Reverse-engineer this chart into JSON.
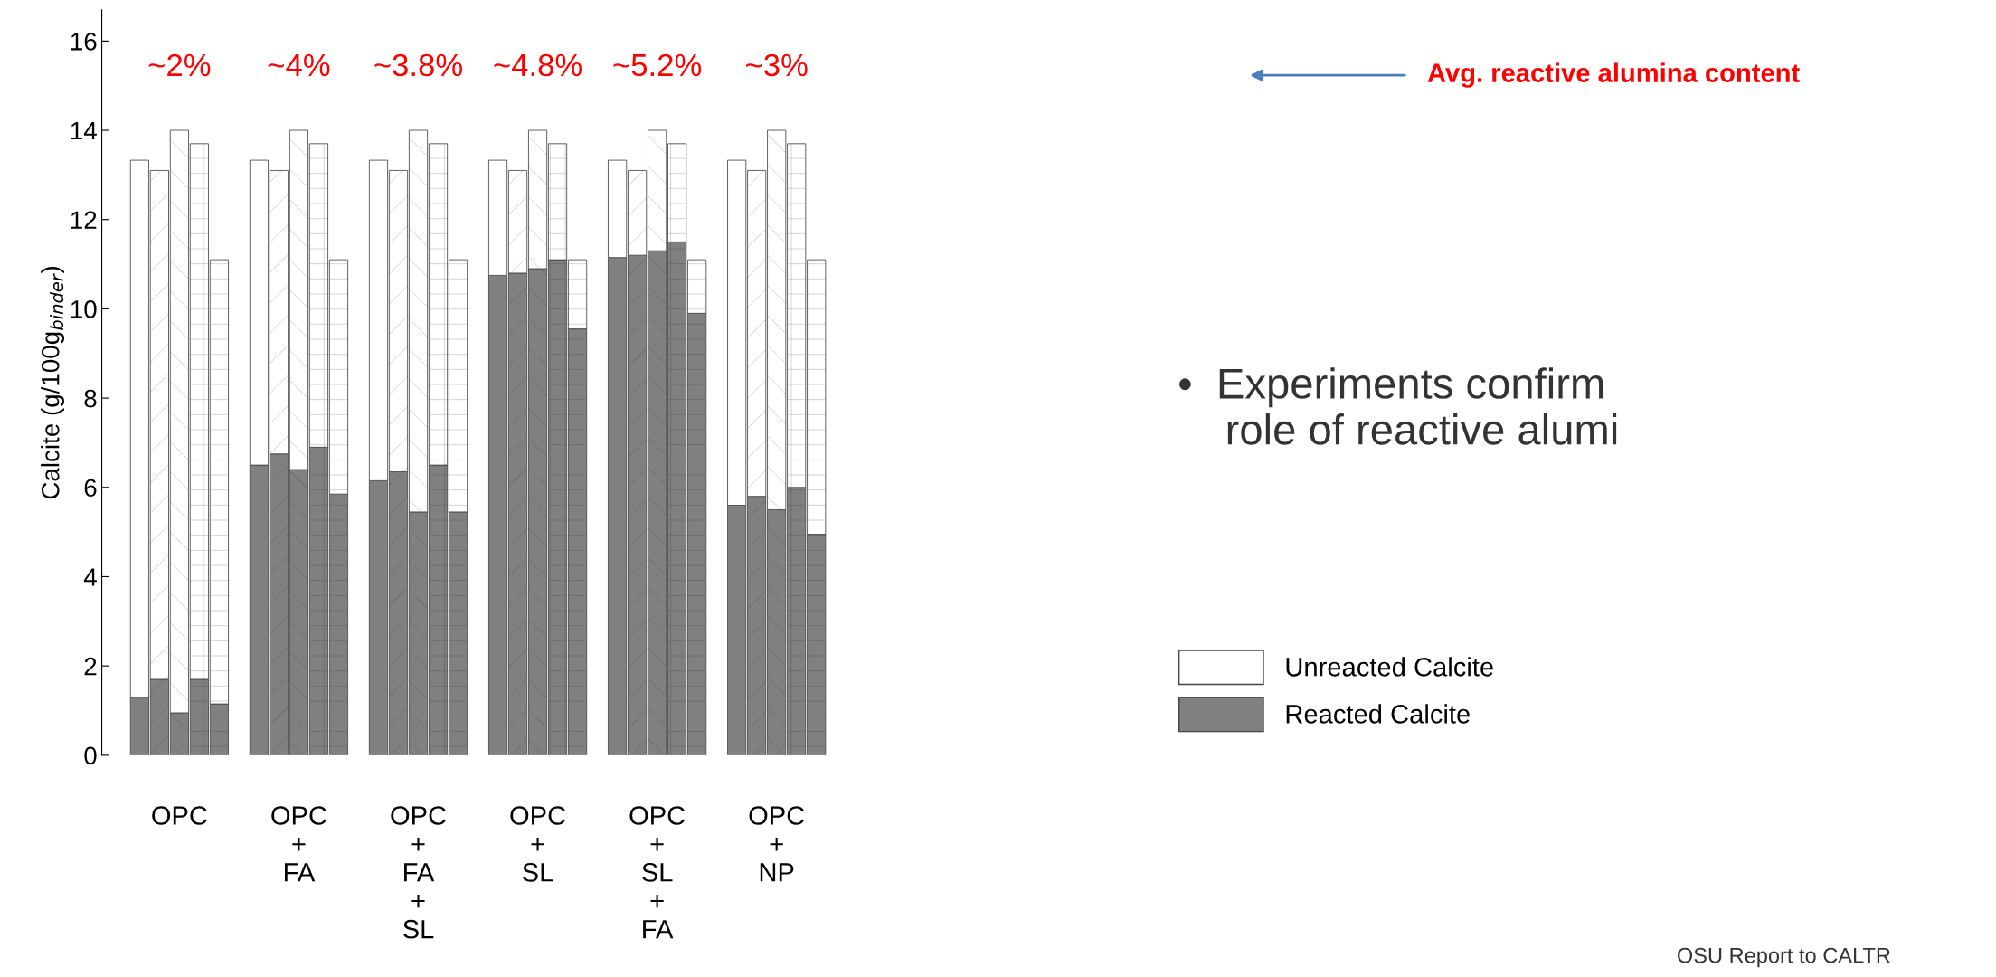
{
  "chart_data": {
    "type": "bar",
    "stacked": true,
    "ylabel": "Calcite (g/100g$_{binder}$)",
    "ylim": [
      0,
      16.7
    ],
    "yticks": [
      0,
      2,
      4,
      6,
      8,
      10,
      12,
      14,
      16
    ],
    "grid": false,
    "legend": "right",
    "categories": [
      null,
      null,
      "OPC",
      null,
      null,
      null,
      null,
      null,
      "OPC\n+\nFA",
      null,
      null,
      null,
      null,
      null,
      "OPC\n+\nFA\n+\nSL",
      null,
      null,
      null,
      null,
      null,
      "OPC\n+\nSL",
      null,
      null,
      null,
      null,
      null,
      "OPC\n+\nSL\n+\nFA",
      null,
      null,
      null,
      null,
      null,
      "OPC\n+\nNP",
      null,
      null
    ],
    "series": [
      {
        "name": "Reacted Calcite",
        "color": "#808080",
        "values": [
          1.3,
          1.7,
          0.95,
          1.7,
          1.15,
          null,
          6.5,
          6.75,
          6.4,
          6.9,
          5.85,
          null,
          6.15,
          6.35,
          5.45,
          6.5,
          5.45,
          null,
          10.75,
          10.8,
          10.9,
          11.1,
          9.55,
          null,
          11.15,
          11.2,
          11.3,
          11.5,
          9.9,
          null,
          5.6,
          5.8,
          5.5,
          6.0,
          4.95
        ]
      },
      {
        "name": "Unreacted Calcite",
        "color": "#ffffff",
        "values": [
          12.03,
          11.4,
          13.05,
          12.0,
          9.95,
          null,
          6.83,
          6.35,
          7.6,
          6.8,
          5.25,
          null,
          7.18,
          6.75,
          8.55,
          7.2,
          5.65,
          null,
          2.58,
          2.3,
          3.1,
          2.6,
          1.55,
          null,
          2.18,
          1.9,
          2.7,
          2.2,
          1.2,
          null,
          7.73,
          7.3,
          8.5,
          7.7,
          6.15
        ]
      }
    ],
    "annotations": [
      "~2%",
      "~4%",
      "~3.8%",
      "~4.8%",
      "~5.2%",
      "~3%",
      "Avg. reactive alumina content",
      "•  Experiments confirm\n    role of reactive alumi",
      "OSU Report to CALTR"
    ]
  }
}
